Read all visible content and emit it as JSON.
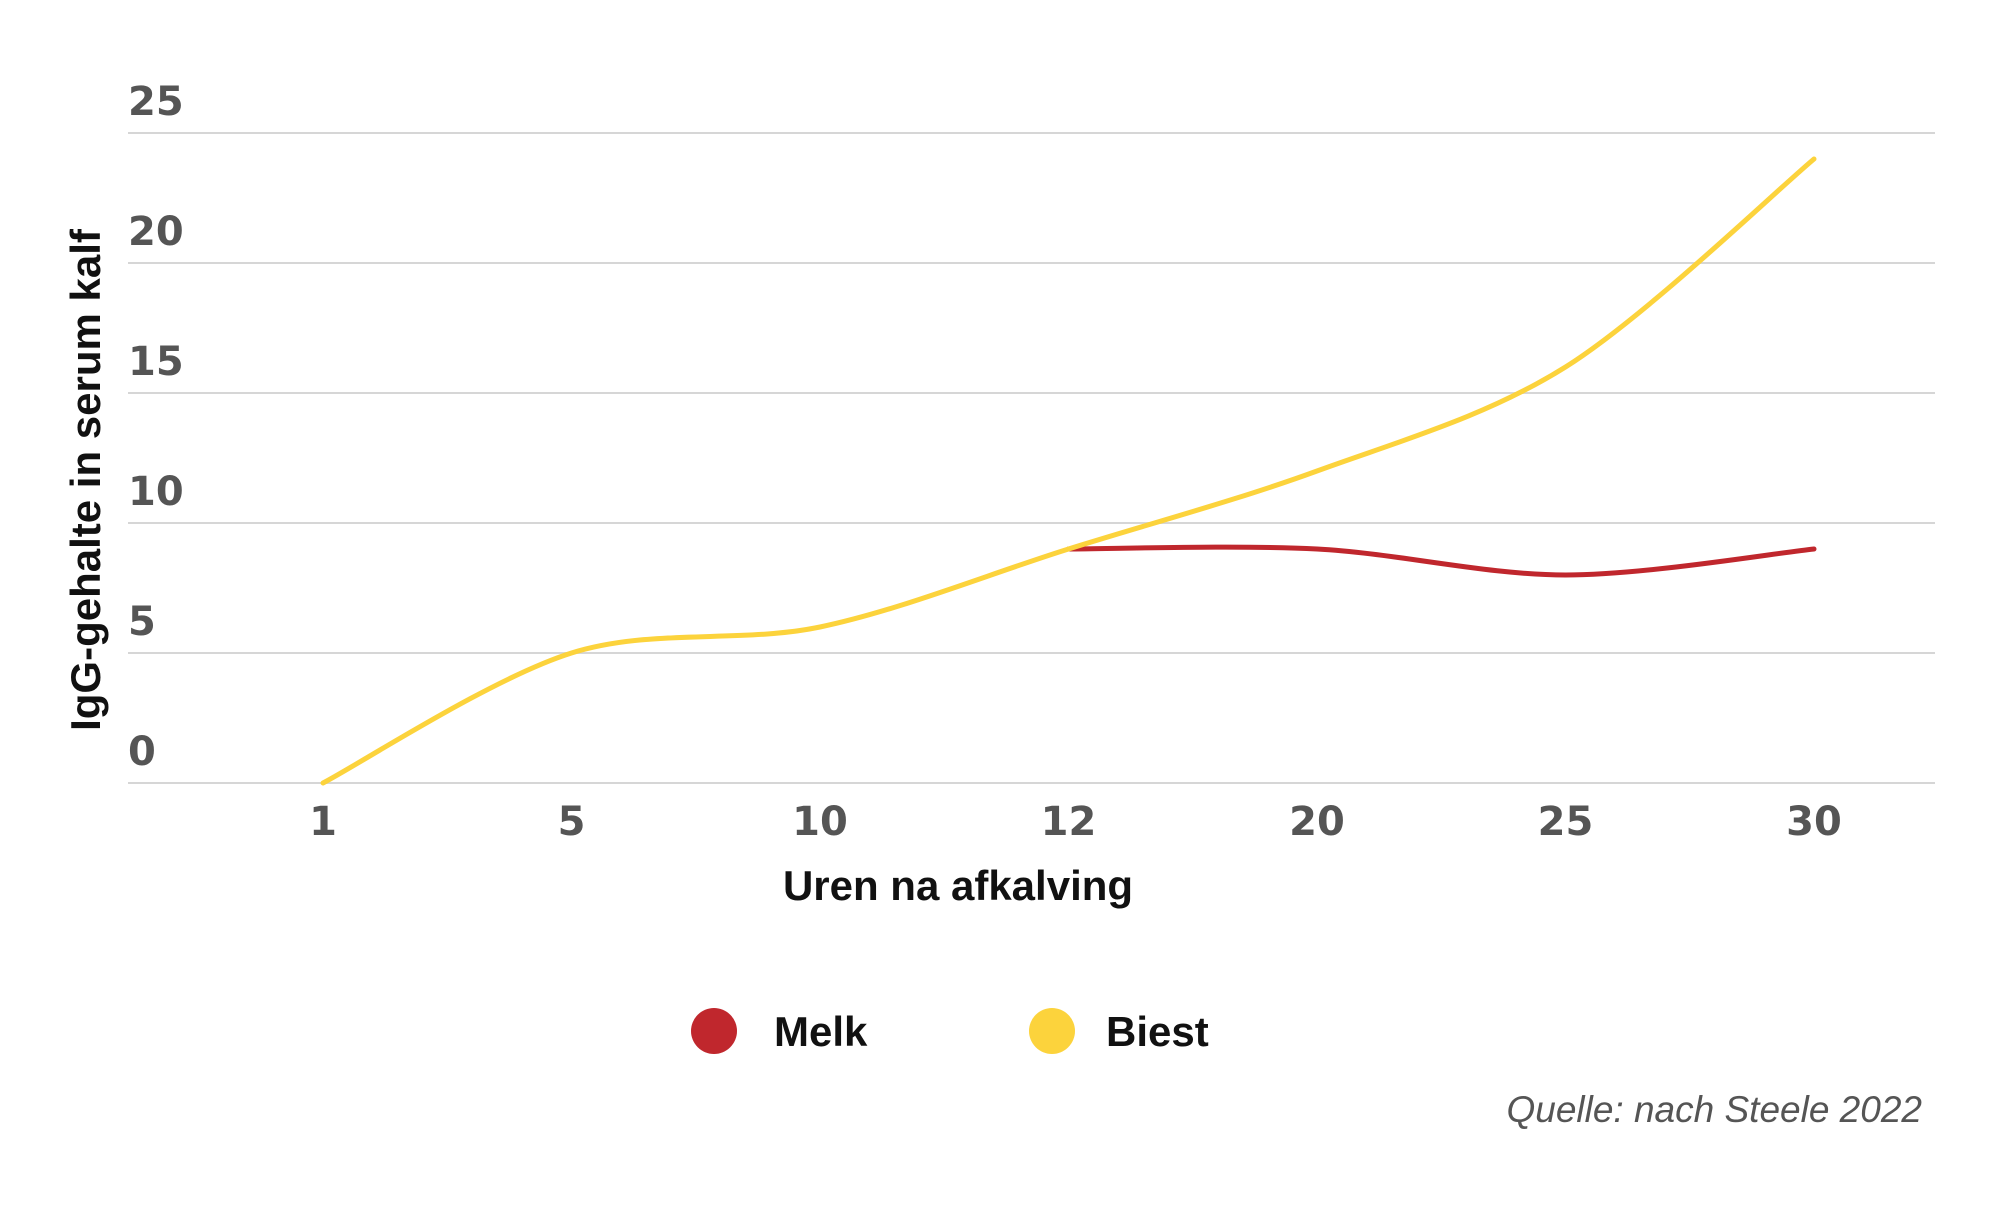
{
  "chart_data": {
    "type": "line",
    "title": "",
    "xlabel": "Uren na afkalving",
    "ylabel": "IgG-gehalte in serum kalf",
    "categories": [
      "1",
      "5",
      "10",
      "12",
      "20",
      "25",
      "30"
    ],
    "ylim": [
      0,
      25
    ],
    "yticks": [
      "0",
      "5",
      "10",
      "15",
      "20",
      "25"
    ],
    "grid": true,
    "series": [
      {
        "name": "Melk",
        "color": "#c0272d",
        "values": [
          null,
          null,
          null,
          9,
          9,
          8,
          9
        ]
      },
      {
        "name": "Biest",
        "color": "#fcd33c",
        "values": [
          0,
          5,
          6,
          9,
          12,
          16,
          24
        ]
      }
    ],
    "legend_position": "bottom-center",
    "source": "Quelle: nach Steele 2022"
  }
}
